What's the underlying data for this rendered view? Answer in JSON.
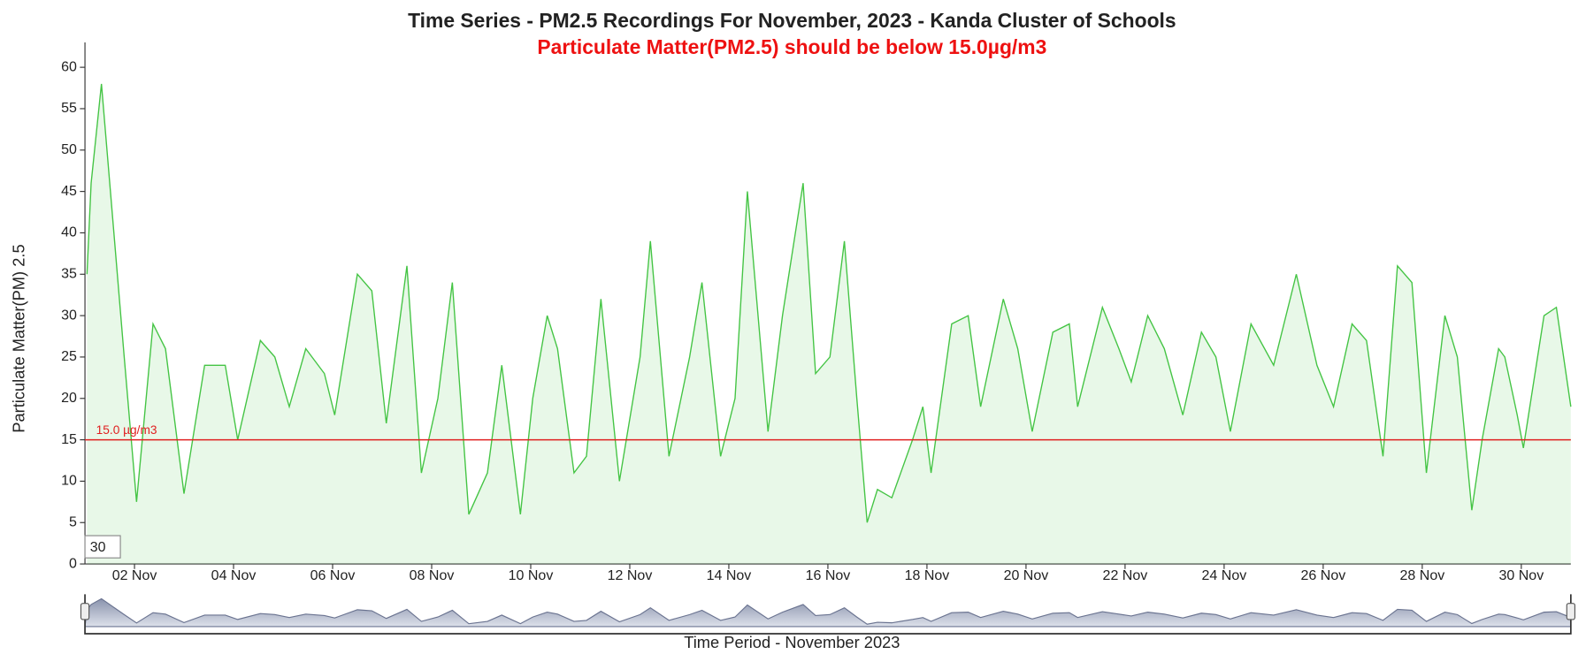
{
  "chart_data": {
    "type": "line",
    "title": "Time Series - PM2.5 Recordings For November, 2023 - Kanda Cluster of Schools",
    "subtitle": "Particulate Matter(PM2.5) should be below 15.0µg/m3",
    "y_label": "Particulate Matter(PM) 2.5",
    "x_label": "Time Period - November 2023",
    "rolling_period": "30",
    "threshold": {
      "value": 15,
      "label": "15.0 µg/m3",
      "color": "#e02020"
    },
    "grid": false,
    "ylim": [
      0,
      63
    ],
    "yticks": [
      0,
      5,
      10,
      15,
      20,
      25,
      30,
      35,
      40,
      45,
      50,
      55,
      60
    ],
    "xlim": [
      "2023-11-01T00:00",
      "2023-12-01T00:00"
    ],
    "xticks": [
      {
        "value": "2023-11-02T00:00",
        "label": "02 Nov"
      },
      {
        "value": "2023-11-04T00:00",
        "label": "04 Nov"
      },
      {
        "value": "2023-11-06T00:00",
        "label": "06 Nov"
      },
      {
        "value": "2023-11-08T00:00",
        "label": "08 Nov"
      },
      {
        "value": "2023-11-10T00:00",
        "label": "10 Nov"
      },
      {
        "value": "2023-11-12T00:00",
        "label": "12 Nov"
      },
      {
        "value": "2023-11-14T00:00",
        "label": "14 Nov"
      },
      {
        "value": "2023-11-16T00:00",
        "label": "16 Nov"
      },
      {
        "value": "2023-11-18T00:00",
        "label": "18 Nov"
      },
      {
        "value": "2023-11-20T00:00",
        "label": "20 Nov"
      },
      {
        "value": "2023-11-22T00:00",
        "label": "22 Nov"
      },
      {
        "value": "2023-11-24T00:00",
        "label": "24 Nov"
      },
      {
        "value": "2023-11-26T00:00",
        "label": "26 Nov"
      },
      {
        "value": "2023-11-28T00:00",
        "label": "28 Nov"
      },
      {
        "value": "2023-11-30T00:00",
        "label": "30 Nov"
      }
    ],
    "x": [
      "2023-11-01T01:00",
      "2023-11-01T03:00",
      "2023-11-01T08:00",
      "2023-11-01T14:00",
      "2023-11-01T19:00",
      "2023-11-02T01:00",
      "2023-11-02T09:00",
      "2023-11-02T15:00",
      "2023-11-03T00:00",
      "2023-11-03T10:00",
      "2023-11-03T20:00",
      "2023-11-04T02:00",
      "2023-11-04T13:00",
      "2023-11-04T20:00",
      "2023-11-05T03:00",
      "2023-11-05T11:00",
      "2023-11-05T20:00",
      "2023-11-06T01:00",
      "2023-11-06T12:00",
      "2023-11-06T19:00",
      "2023-11-07T02:00",
      "2023-11-07T12:00",
      "2023-11-07T19:00",
      "2023-11-08T03:00",
      "2023-11-08T10:00",
      "2023-11-08T18:00",
      "2023-11-09T03:00",
      "2023-11-09T10:00",
      "2023-11-09T19:00",
      "2023-11-10T01:00",
      "2023-11-10T08:00",
      "2023-11-10T13:00",
      "2023-11-10T21:00",
      "2023-11-11T03:00",
      "2023-11-11T10:00",
      "2023-11-11T19:00",
      "2023-11-12T05:00",
      "2023-11-12T10:00",
      "2023-11-12T19:00",
      "2023-11-13T05:00",
      "2023-11-13T11:00",
      "2023-11-13T20:00",
      "2023-11-14T03:00",
      "2023-11-14T09:00",
      "2023-11-14T19:00",
      "2023-11-15T02:00",
      "2023-11-15T12:00",
      "2023-11-15T18:00",
      "2023-11-16T01:00",
      "2023-11-16T08:00",
      "2023-11-16T14:00",
      "2023-11-16T19:00",
      "2023-11-17T00:00",
      "2023-11-17T07:00",
      "2023-11-17T17:00",
      "2023-11-17T22:00",
      "2023-11-18T02:00",
      "2023-11-18T12:00",
      "2023-11-18T20:00",
      "2023-11-19T02:00",
      "2023-11-19T13:00",
      "2023-11-19T20:00",
      "2023-11-20T03:00",
      "2023-11-20T13:00",
      "2023-11-20T21:00",
      "2023-11-21T01:00",
      "2023-11-21T13:00",
      "2023-11-21T21:00",
      "2023-11-22T03:00",
      "2023-11-22T11:00",
      "2023-11-22T19:00",
      "2023-11-23T04:00",
      "2023-11-23T13:00",
      "2023-11-23T20:00",
      "2023-11-24T03:00",
      "2023-11-24T13:00",
      "2023-11-25T00:00",
      "2023-11-25T11:00",
      "2023-11-25T21:00",
      "2023-11-26T05:00",
      "2023-11-26T14:00",
      "2023-11-26T21:00",
      "2023-11-27T05:00",
      "2023-11-27T12:00",
      "2023-11-27T19:00",
      "2023-11-28T02:00",
      "2023-11-28T11:00",
      "2023-11-28T17:00",
      "2023-11-29T00:00",
      "2023-11-29T05:00",
      "2023-11-29T13:00",
      "2023-11-29T16:00",
      "2023-11-29T22:00",
      "2023-11-30T01:00",
      "2023-11-30T11:00",
      "2023-11-30T17:00",
      "2023-12-01T00:00"
    ],
    "series": [
      {
        "name": "PM2.5",
        "color": "#44c444",
        "values": [
          35,
          46,
          58,
          40,
          25,
          7.5,
          29,
          26,
          8.5,
          24,
          24,
          15,
          27,
          25,
          19,
          26,
          23,
          18,
          35,
          33,
          17,
          36,
          11,
          20,
          34,
          6,
          11,
          24,
          6,
          20,
          30,
          26,
          11,
          13,
          32,
          10,
          25,
          39,
          13,
          25,
          34,
          13,
          20,
          45,
          16,
          30,
          46,
          23,
          25,
          39,
          20,
          5,
          9,
          8,
          15,
          19,
          11,
          29,
          30,
          19,
          32,
          26,
          16,
          28,
          29,
          19,
          31,
          26,
          22,
          30,
          26,
          18,
          28,
          25,
          16,
          29,
          24,
          35,
          24,
          19,
          29,
          27,
          13,
          36,
          34,
          11,
          30,
          25,
          6.5,
          15,
          26,
          25,
          18,
          14,
          30,
          31,
          19
        ]
      }
    ]
  }
}
